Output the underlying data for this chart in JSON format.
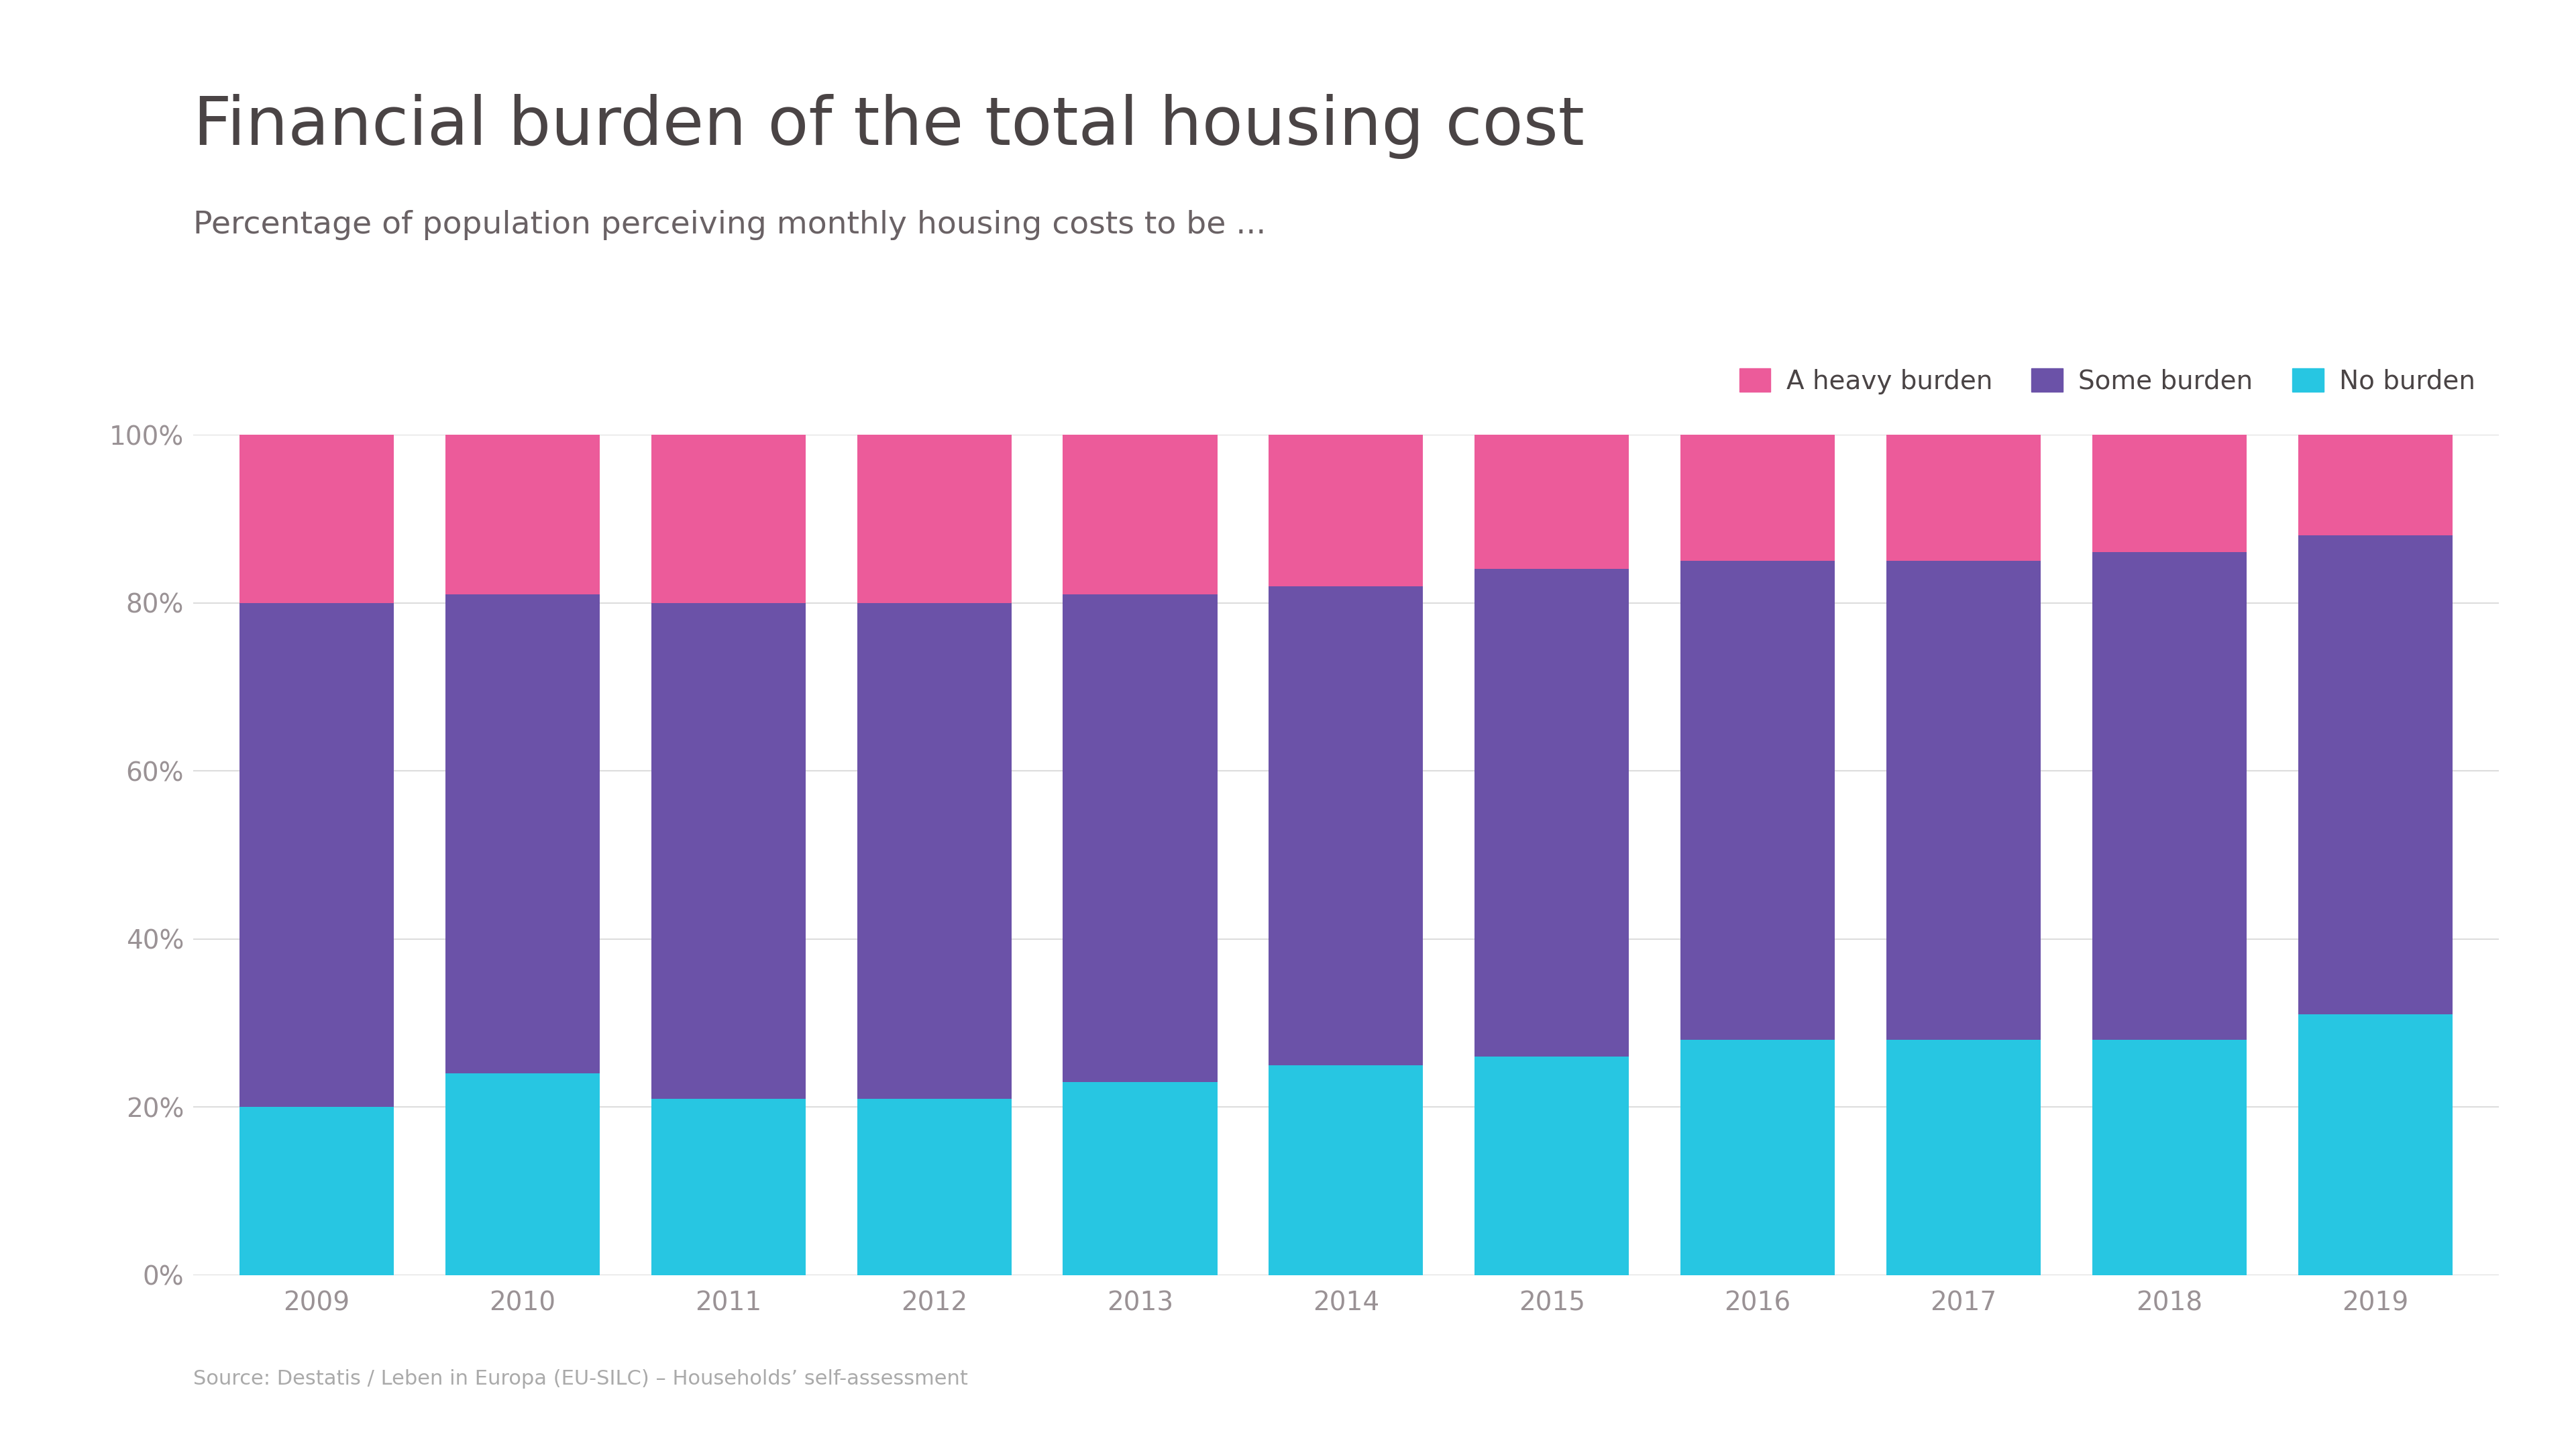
{
  "title": "Financial burden of the total housing cost",
  "subtitle": "Percentage of population perceiving monthly housing costs to be ...",
  "source": "Source: Destatis / Leben in Europa (EU-SILC) – Households’ self-assessment",
  "years": [
    2009,
    2010,
    2011,
    2012,
    2013,
    2014,
    2015,
    2016,
    2017,
    2018,
    2019
  ],
  "no_burden": [
    20,
    24,
    21,
    21,
    23,
    25,
    26,
    28,
    28,
    28,
    31
  ],
  "some_burden": [
    60,
    57,
    59,
    59,
    58,
    57,
    58,
    57,
    57,
    58,
    57
  ],
  "heavy_burden": [
    20,
    19,
    20,
    20,
    19,
    18,
    16,
    15,
    15,
    14,
    12
  ],
  "color_no_burden": "#27c6e2",
  "color_some_burden": "#6b52a8",
  "color_heavy_burden": "#ec5b9a",
  "background_color": "#ffffff",
  "title_color": "#4a4445",
  "subtitle_color": "#6a6265",
  "tick_color": "#9a9295",
  "source_color": "#aaaaaa",
  "legend_text_color": "#4a4445",
  "bar_width": 0.75,
  "ylim": [
    0,
    100
  ],
  "yticks": [
    0,
    20,
    40,
    60,
    80,
    100
  ],
  "ytick_labels": [
    "0%",
    "20%",
    "40%",
    "60%",
    "80%",
    "100%"
  ],
  "title_fontsize": 72,
  "subtitle_fontsize": 34,
  "tick_fontsize": 28,
  "source_fontsize": 22,
  "legend_fontsize": 28
}
